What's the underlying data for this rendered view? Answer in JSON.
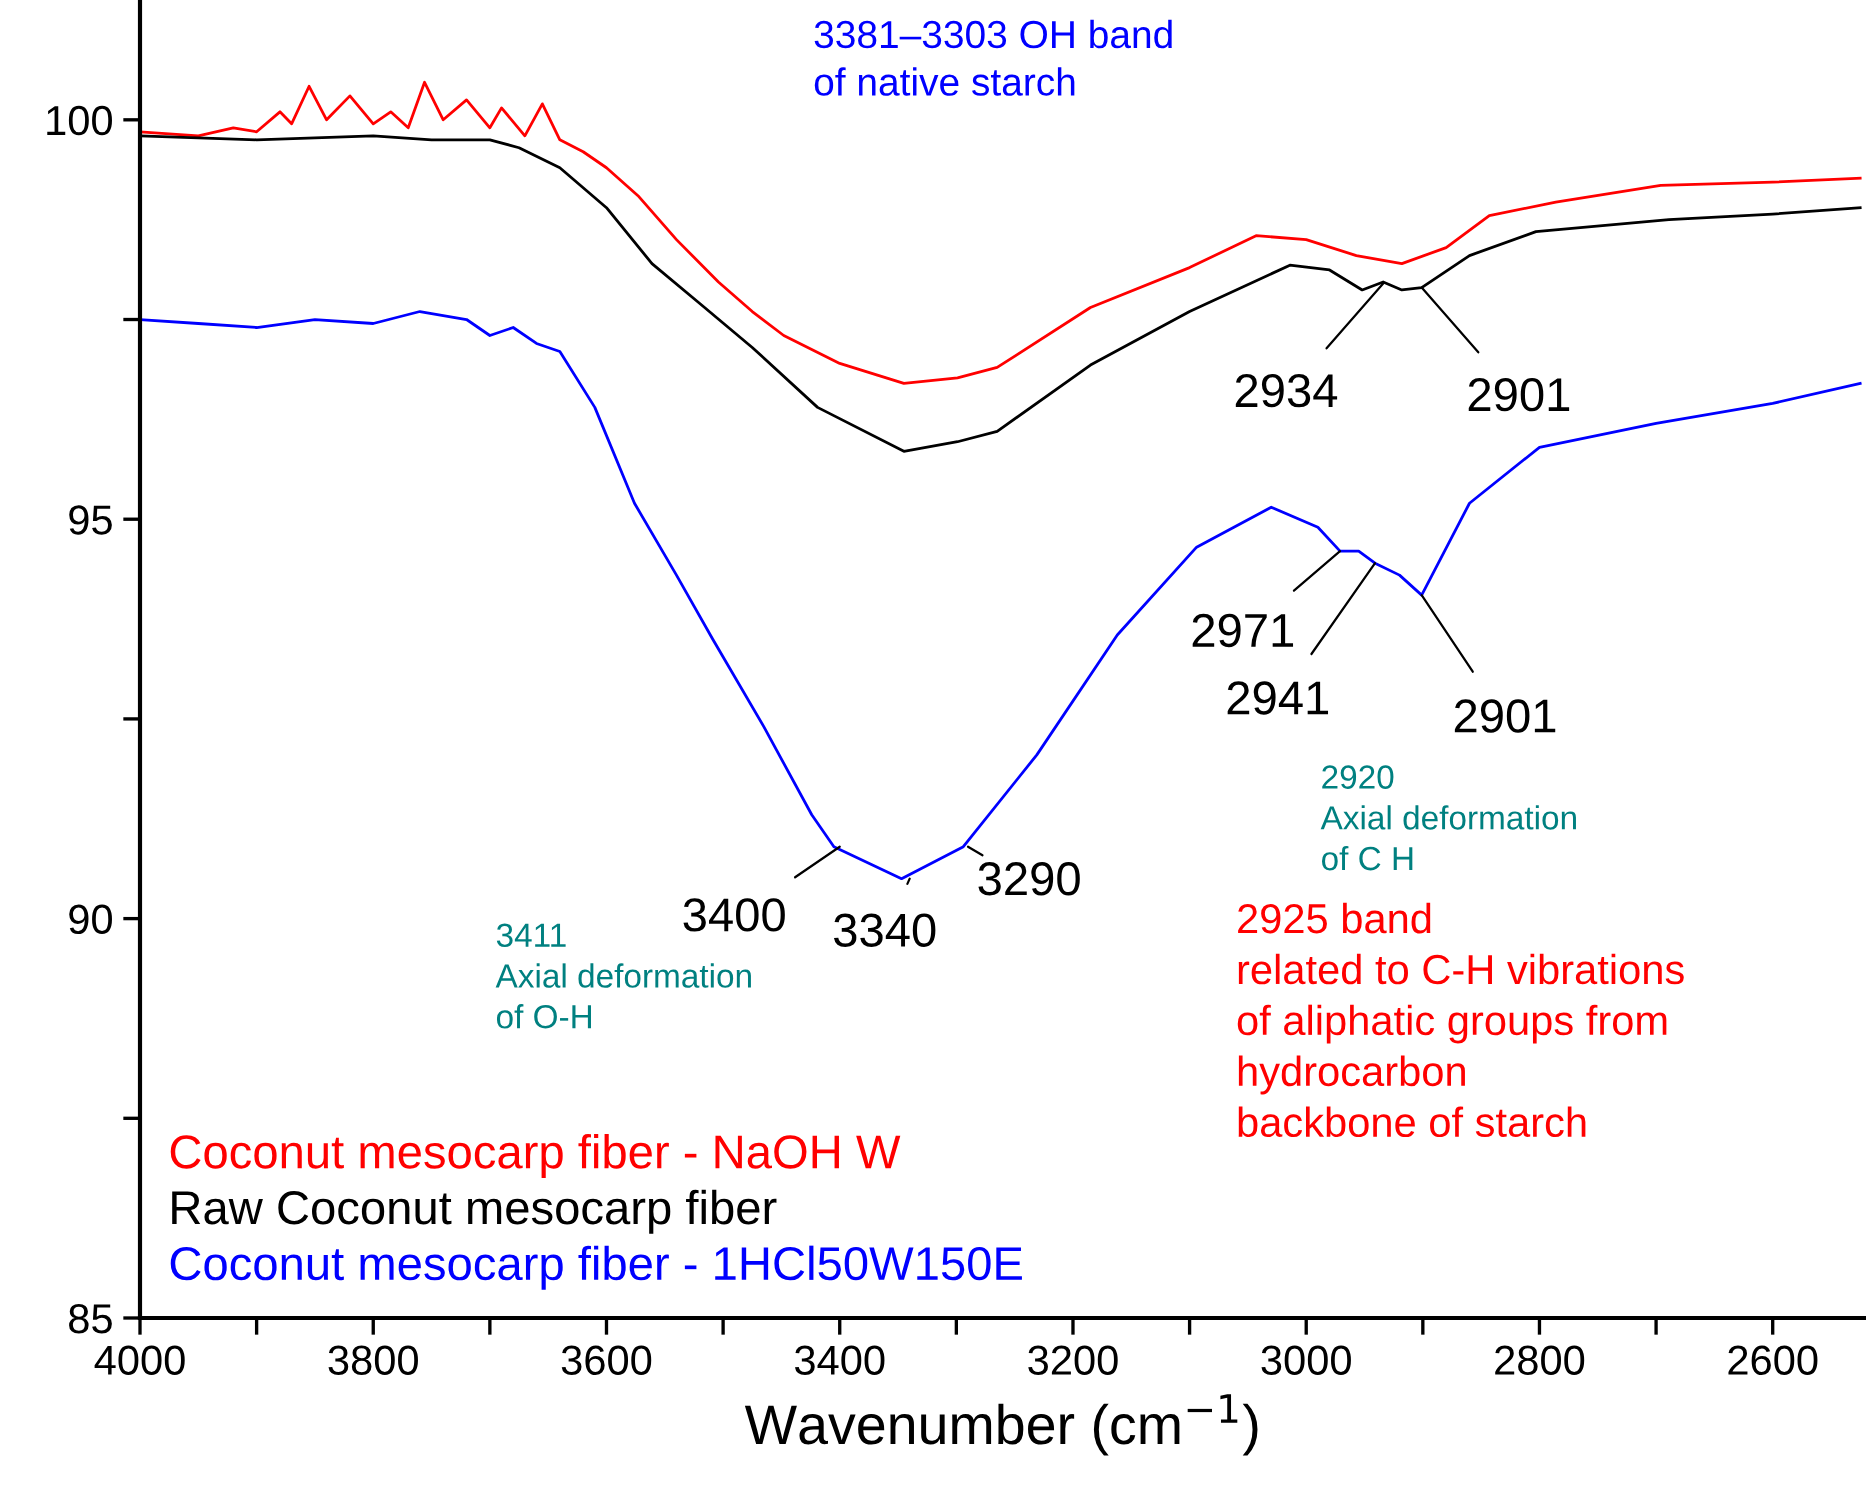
{
  "chart_data": {
    "type": "line",
    "xlabel": "Wavenumber (cm$^{−1}$)",
    "xlim": [
      4000,
      2520
    ],
    "ylim": [
      85,
      101.5
    ],
    "xticks": [
      4000,
      {
        "value": 3900,
        "label": null
      },
      3800,
      {
        "value": 3700,
        "label": null
      },
      3600,
      {
        "value": 3500,
        "label": null
      },
      3400,
      {
        "value": 3300,
        "label": null
      },
      3200,
      {
        "value": 3100,
        "label": null
      },
      3000,
      {
        "value": 2900,
        "label": null
      },
      2800,
      {
        "value": 2700,
        "label": null
      },
      2600
    ],
    "yticks": [
      85,
      {
        "value": 87.5,
        "label": null
      },
      90,
      {
        "value": 92.5,
        "label": null
      },
      95,
      {
        "value": 97.5,
        "label": null
      },
      100
    ],
    "grid": false,
    "legend": "bottom left",
    "marker": "none",
    "line_style": "solid",
    "series": [
      {
        "name": "Coconut mesocarp fiber - NaOH W",
        "color": "#ff0000",
        "x": [
          4000,
          3950,
          3920,
          3900,
          3880,
          3870,
          3855,
          3840,
          3820,
          3800,
          3785,
          3770,
          3756,
          3740,
          3720,
          3700,
          3690,
          3670,
          3655,
          3640,
          3620,
          3600,
          3573,
          3540,
          3504,
          3475,
          3448,
          3400,
          3345,
          3299,
          3265,
          3185,
          3100,
          3043,
          3000,
          2957,
          2918,
          2880,
          2843,
          2786,
          2696,
          2600,
          2525
        ],
        "values": [
          99.85,
          99.8,
          99.9,
          99.85,
          100.1,
          99.95,
          100.42,
          100.0,
          100.3,
          99.95,
          100.1,
          99.9,
          100.47,
          100.0,
          100.25,
          99.9,
          100.15,
          99.8,
          100.2,
          99.75,
          99.6,
          99.4,
          99.05,
          98.5,
          97.97,
          97.6,
          97.3,
          96.95,
          96.7,
          96.77,
          96.9,
          97.65,
          98.15,
          98.55,
          98.5,
          98.3,
          98.2,
          98.4,
          98.8,
          98.97,
          99.18,
          99.22,
          99.27
        ]
      },
      {
        "name": "Raw Coconut mesocarp fiber",
        "color": "#000000",
        "x": [
          4000,
          3900,
          3800,
          3750,
          3700,
          3675,
          3640,
          3600,
          3561,
          3520,
          3475,
          3419,
          3345,
          3299,
          3265,
          3185,
          3100,
          3014,
          2980,
          2952,
          2934,
          2918,
          2901,
          2860,
          2803,
          2689,
          2600,
          2525
        ],
        "values": [
          99.8,
          99.75,
          99.8,
          99.75,
          99.75,
          99.65,
          99.4,
          98.9,
          98.2,
          97.7,
          97.15,
          96.4,
          95.85,
          95.97,
          96.1,
          96.93,
          97.6,
          98.18,
          98.12,
          97.87,
          97.97,
          97.87,
          97.9,
          98.3,
          98.6,
          98.75,
          98.82,
          98.9
        ]
      },
      {
        "name": "Coconut mesocarp fiber - 1HCl50W150E",
        "color": "#0000ff",
        "x": [
          4000,
          3950,
          3900,
          3850,
          3800,
          3760,
          3720,
          3700,
          3680,
          3660,
          3640,
          3610,
          3576,
          3540,
          3509,
          3465,
          3424,
          3405,
          3347,
          3294,
          3231,
          3162,
          3094,
          3030,
          2990,
          2971,
          2955,
          2941,
          2920,
          2901,
          2860,
          2800,
          2700,
          2600,
          2525
        ],
        "values": [
          97.5,
          97.45,
          97.4,
          97.5,
          97.45,
          97.6,
          97.5,
          97.3,
          97.4,
          97.2,
          97.1,
          96.4,
          95.2,
          94.3,
          93.5,
          92.4,
          91.3,
          90.9,
          90.5,
          90.9,
          92.05,
          93.55,
          94.65,
          95.15,
          94.9,
          94.6,
          94.6,
          94.45,
          94.3,
          94.05,
          95.2,
          95.9,
          96.2,
          96.45,
          96.7
        ]
      }
    ],
    "annotations": [
      {
        "text": "2934",
        "x": 2934,
        "y": 97.95
      },
      {
        "text": "2901",
        "x": 2901,
        "y": 97.9
      },
      {
        "text": "2971",
        "x": 2971,
        "y": 94.6
      },
      {
        "text": "2941",
        "x": 2941,
        "y": 94.45
      },
      {
        "text": "2901",
        "x": 2901,
        "y": 94.05
      },
      {
        "text": "3400",
        "x": 3400,
        "y": 90.9
      },
      {
        "text": "3340",
        "x": 3340,
        "y": 90.5
      },
      {
        "text": "3290",
        "x": 3290,
        "y": 90.9
      },
      "3381–3303 OH band\nof native starch",
      "3411\nAxial deformation\nof O-H",
      "2920\nAxial deformation\nof C H",
      "2925 band\nrelated to C-H vibrations\nof aliphatic groups from\nhydrocarbon\nbackbone of starch"
    ]
  }
}
